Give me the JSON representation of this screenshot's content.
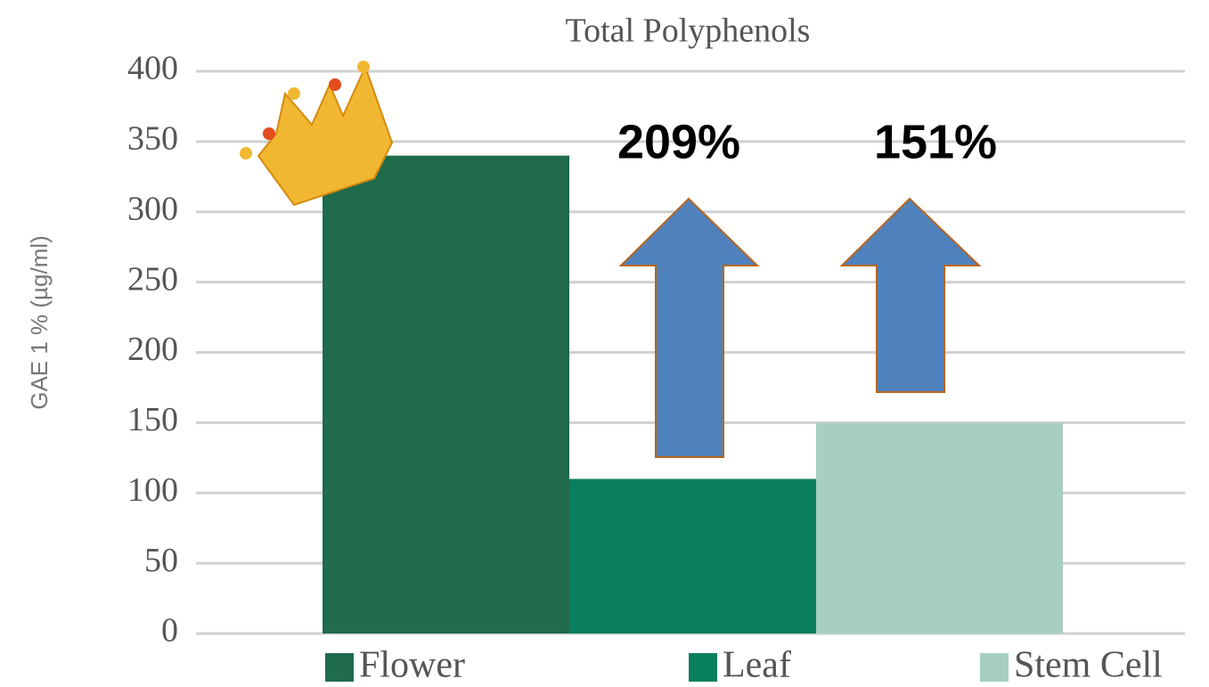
{
  "chart_data": {
    "type": "bar",
    "title": "Total Polyphenols",
    "y_label": "GAE 1 % (µg/ml)",
    "categories": [
      "Flower",
      "Leaf",
      "Stem Cell"
    ],
    "values": [
      340,
      110,
      150
    ],
    "colors": [
      "#1f6b4c",
      "#0a7f5b",
      "#a6cfc1"
    ],
    "ylim": [
      0,
      400
    ],
    "yticks": [
      0,
      50,
      100,
      150,
      200,
      250,
      300,
      350,
      400
    ],
    "grid": true,
    "annotations": [
      "209%",
      "151%"
    ]
  }
}
